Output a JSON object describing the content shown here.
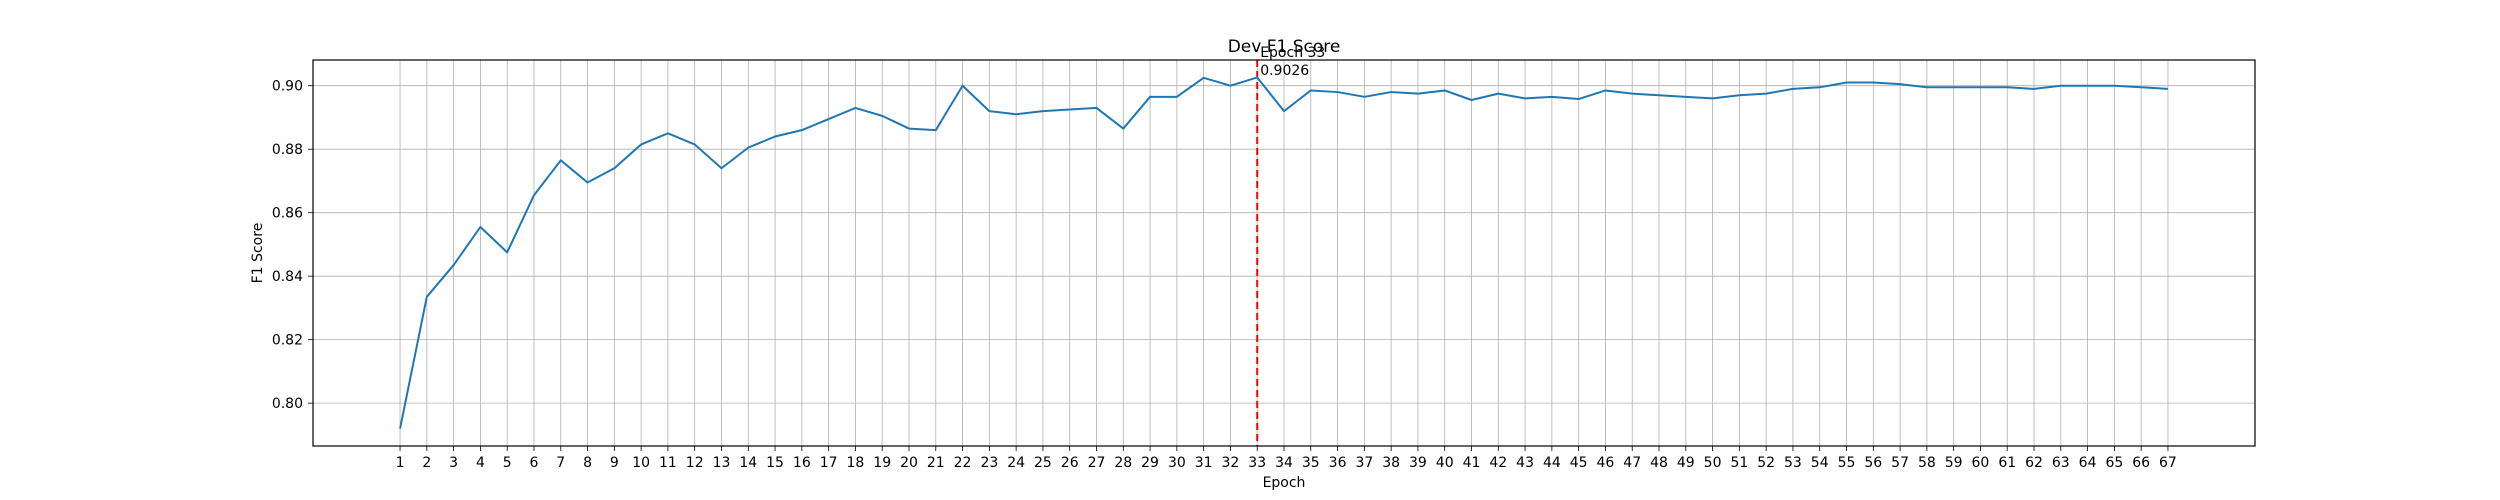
{
  "chart_data": {
    "type": "line",
    "title": "Dev F1 Score",
    "xlabel": "Epoch",
    "ylabel": "F1 Score",
    "x": [
      1,
      2,
      3,
      4,
      5,
      6,
      7,
      8,
      9,
      10,
      11,
      12,
      13,
      14,
      15,
      16,
      17,
      18,
      19,
      20,
      21,
      22,
      23,
      24,
      25,
      26,
      27,
      28,
      29,
      30,
      31,
      32,
      33,
      34,
      35,
      36,
      37,
      38,
      39,
      40,
      41,
      42,
      43,
      44,
      45,
      46,
      47,
      48,
      49,
      50,
      51,
      52,
      53,
      54,
      55,
      56,
      57,
      58,
      59,
      60,
      61,
      62,
      63,
      64,
      65,
      66,
      67
    ],
    "series": [
      {
        "color": "#1f77b4",
        "values": [
          0.792,
          0.8335,
          0.8435,
          0.8555,
          0.8475,
          0.8655,
          0.8765,
          0.8695,
          0.874,
          0.8815,
          0.885,
          0.8815,
          0.874,
          0.8805,
          0.884,
          0.886,
          0.8895,
          0.893,
          0.8905,
          0.8865,
          0.886,
          0.9,
          0.892,
          0.891,
          0.892,
          0.8925,
          0.893,
          0.8865,
          0.8965,
          0.8965,
          0.9025,
          0.9,
          0.9026,
          0.892,
          0.8985,
          0.898,
          0.8965,
          0.898,
          0.8975,
          0.8985,
          0.8955,
          0.8975,
          0.896,
          0.8965,
          0.8958,
          0.8985,
          0.8975,
          0.897,
          0.8965,
          0.896,
          0.897,
          0.8975,
          0.899,
          0.8995,
          0.901,
          0.901,
          0.9005,
          0.8995,
          0.8995,
          0.8995,
          0.8995,
          0.899,
          0.9,
          0.9,
          0.9,
          0.8995,
          0.899
        ]
      }
    ],
    "yticks": [
      "0.80",
      "0.82",
      "0.84",
      "0.86",
      "0.88",
      "0.90"
    ],
    "ylim": [
      0.7865,
      0.9081
    ],
    "xlim": [
      -2.25,
      70.25
    ],
    "grid": true,
    "best_marker": {
      "epoch": 33,
      "line_color": "#ff0000",
      "label_line1": "Epoch 33",
      "label_line2": "0.9026"
    }
  }
}
